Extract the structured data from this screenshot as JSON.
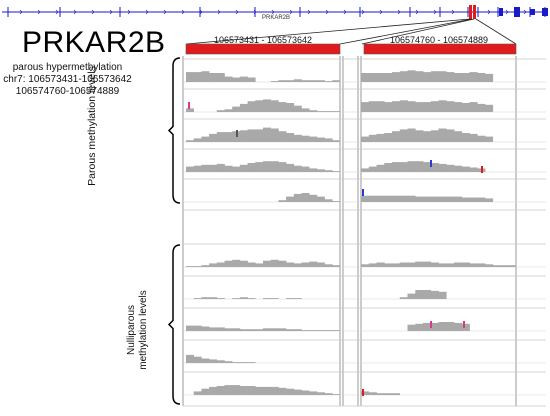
{
  "gene": {
    "track_label": "PRKAR2B",
    "title": "PRKAR2B",
    "subtitle": "parous hypermethylation",
    "coord_line_1": "chr7: 106573431-106573642",
    "coord_line_2": "106574760-106574889"
  },
  "regions": [
    {
      "label": "106573431 - 106573642"
    },
    {
      "label": "106574760 - 106574889"
    }
  ],
  "groups": {
    "parous": "Parous methylation levels",
    "nulliparous_line_1": "Nulliparous",
    "nulliparous_line_2": "methylation levels"
  },
  "colors": {
    "track_blue": "#1a1ac8",
    "highlight_red": "#e11b1b",
    "signal_gray": "#a9a9a9",
    "gridline_gray": "#9a9a9a",
    "marker_blue": "#2b3bd6",
    "marker_pink": "#d63b8a"
  },
  "chart_data": {
    "type": "area",
    "description_rows": "methylation level coverage tracks for two genomic regions, parous samples (rows 1-5) and nulliparous samples (rows 6-10)",
    "regions": [
      "106573431 - 106573642",
      "106574760 - 106574889"
    ],
    "rows": [
      {
        "group": "parous",
        "region_1": [
          0.55,
          0.55,
          0.6,
          0.5,
          0.5,
          0.3,
          0.25,
          0.3,
          0.25,
          0.0,
          0.0,
          0.05,
          0.1,
          0.1,
          0.15,
          0.1,
          0.1,
          0.1,
          0.05,
          0.1
        ],
        "region_2": [
          0.5,
          0.5,
          0.5,
          0.5,
          0.55,
          0.6,
          0.65,
          0.6,
          0.55,
          0.6,
          0.6,
          0.55,
          0.5,
          0.5,
          0.55,
          0.5,
          0.45,
          0.0,
          0.0,
          0.0
        ]
      },
      {
        "group": "parous",
        "region_1": [
          0.2,
          0.0,
          0.0,
          0.0,
          0.1,
          0.15,
          0.3,
          0.45,
          0.6,
          0.65,
          0.7,
          0.65,
          0.55,
          0.5,
          0.35,
          0.2,
          0.1,
          0.05,
          0.05,
          0.05
        ],
        "region_2": [
          0.55,
          0.6,
          0.6,
          0.55,
          0.6,
          0.65,
          0.6,
          0.55,
          0.55,
          0.6,
          0.65,
          0.6,
          0.55,
          0.5,
          0.55,
          0.45,
          0.4,
          0.0,
          0.0,
          0.0
        ]
      },
      {
        "group": "parous",
        "region_1": [
          0.1,
          0.2,
          0.3,
          0.45,
          0.55,
          0.55,
          0.6,
          0.65,
          0.7,
          0.7,
          0.8,
          0.75,
          0.6,
          0.5,
          0.4,
          0.35,
          0.3,
          0.25,
          0.2,
          0.1
        ],
        "region_2": [
          0.3,
          0.4,
          0.45,
          0.5,
          0.6,
          0.7,
          0.75,
          0.65,
          0.6,
          0.65,
          0.75,
          0.7,
          0.6,
          0.5,
          0.45,
          0.35,
          0.3,
          0.0,
          0.0,
          0.0
        ]
      },
      {
        "group": "parous",
        "region_1": [
          0.3,
          0.35,
          0.4,
          0.4,
          0.45,
          0.35,
          0.3,
          0.4,
          0.5,
          0.55,
          0.6,
          0.6,
          0.55,
          0.45,
          0.35,
          0.3,
          0.2,
          0.15,
          0.1,
          0.05
        ],
        "region_2": [
          0.2,
          0.3,
          0.4,
          0.5,
          0.55,
          0.55,
          0.6,
          0.6,
          0.55,
          0.5,
          0.45,
          0.4,
          0.35,
          0.3,
          0.25,
          0.2,
          0.0,
          0.0,
          0.0,
          0.0
        ]
      },
      {
        "group": "parous",
        "region_1": [
          0.0,
          0.0,
          0.0,
          0.0,
          0.0,
          0.0,
          0.0,
          0.0,
          0.0,
          0.0,
          0.0,
          0.0,
          0.1,
          0.3,
          0.45,
          0.5,
          0.4,
          0.3,
          0.15,
          0.05
        ],
        "region_2": [
          0.35,
          0.35,
          0.35,
          0.35,
          0.35,
          0.35,
          0.35,
          0.3,
          0.3,
          0.3,
          0.3,
          0.3,
          0.3,
          0.25,
          0.25,
          0.25,
          0.2,
          0.0,
          0.0,
          0.0
        ]
      },
      {
        "group": "nulliparous",
        "region_1": [
          0.05,
          0.05,
          0.1,
          0.2,
          0.25,
          0.35,
          0.4,
          0.35,
          0.25,
          0.2,
          0.35,
          0.4,
          0.35,
          0.25,
          0.2,
          0.25,
          0.3,
          0.25,
          0.15,
          0.1
        ],
        "region_2": [
          0.15,
          0.2,
          0.25,
          0.2,
          0.2,
          0.25,
          0.25,
          0.3,
          0.3,
          0.25,
          0.2,
          0.2,
          0.25,
          0.25,
          0.2,
          0.2,
          0.15,
          0.1,
          0.1,
          0.1
        ]
      },
      {
        "group": "nulliparous",
        "region_1": [
          0.0,
          0.05,
          0.1,
          0.1,
          0.05,
          0.0,
          0.05,
          0.1,
          0.05,
          0.0,
          0.05,
          0.05,
          0.0,
          0.05,
          0.05,
          0.0,
          0.0,
          0.0,
          0.0,
          0.0
        ],
        "region_2": [
          0.0,
          0.0,
          0.0,
          0.0,
          0.0,
          0.1,
          0.3,
          0.5,
          0.5,
          0.45,
          0.4,
          0.0,
          0.0,
          0.0,
          0.0,
          0.0,
          0.0,
          0.0,
          0.0,
          0.0
        ]
      },
      {
        "group": "nulliparous",
        "region_1": [
          0.3,
          0.3,
          0.25,
          0.2,
          0.2,
          0.15,
          0.15,
          0.1,
          0.1,
          0.1,
          0.15,
          0.15,
          0.15,
          0.1,
          0.1,
          0.05,
          0.05,
          0.05,
          0.05,
          0.05
        ],
        "region_2": [
          0.0,
          0.0,
          0.0,
          0.0,
          0.0,
          0.0,
          0.35,
          0.4,
          0.45,
          0.45,
          0.5,
          0.5,
          0.45,
          0.4,
          0.0,
          0.0,
          0.0,
          0.0,
          0.0,
          0.0
        ]
      },
      {
        "group": "nulliparous",
        "region_1": [
          0.45,
          0.35,
          0.25,
          0.2,
          0.15,
          0.1,
          0.05,
          0.05,
          0.05,
          0.0,
          0.0,
          0.0,
          0.0,
          0.0,
          0.0,
          0.0,
          0.0,
          0.0,
          0.0,
          0.0
        ],
        "region_2": [
          0.0,
          0.0,
          0.0,
          0.0,
          0.0,
          0.0,
          0.0,
          0.0,
          0.0,
          0.0,
          0.0,
          0.0,
          0.0,
          0.0,
          0.0,
          0.0,
          0.0,
          0.0,
          0.0,
          0.0
        ]
      },
      {
        "group": "nulliparous",
        "region_1": [
          0.0,
          0.2,
          0.35,
          0.45,
          0.5,
          0.55,
          0.55,
          0.5,
          0.5,
          0.45,
          0.45,
          0.45,
          0.4,
          0.35,
          0.3,
          0.25,
          0.2,
          0.15,
          0.1,
          0.05
        ],
        "region_2": [
          0.2,
          0.15,
          0.1,
          0.1,
          0.1,
          0.0,
          0.0,
          0.0,
          0.0,
          0.0,
          0.0,
          0.0,
          0.0,
          0.0,
          0.0,
          0.0,
          0.0,
          0.0,
          0.0,
          0.0
        ]
      }
    ]
  }
}
